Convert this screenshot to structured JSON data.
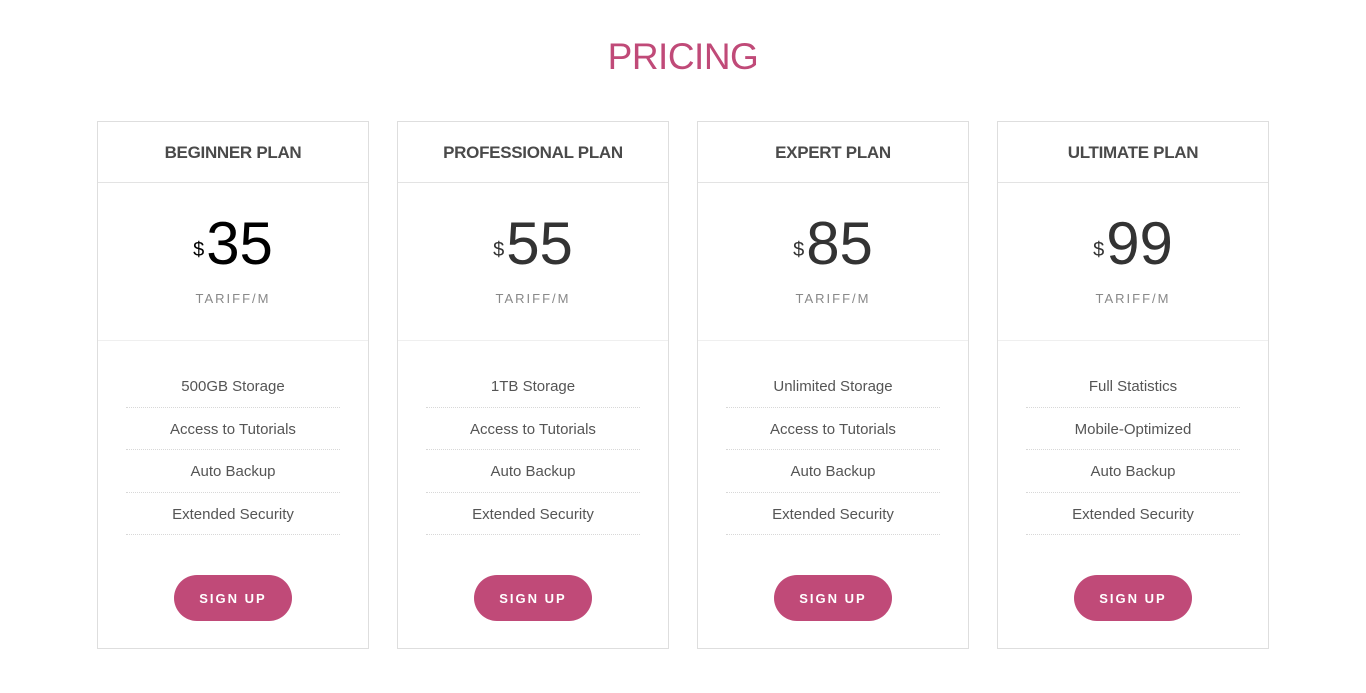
{
  "title": "PRICING",
  "accent_color": "#c04a78",
  "plans": [
    {
      "name": "BEGINNER PLAN",
      "currency": "$",
      "price": "35",
      "period": "TARIFF/M",
      "features": [
        "500GB Storage",
        "Access to Tutorials",
        "Auto Backup",
        "Extended Security"
      ],
      "button": "SIGN UP"
    },
    {
      "name": "PROFESSIONAL PLAN",
      "currency": "$",
      "price": "55",
      "period": "TARIFF/M",
      "features": [
        "1TB Storage",
        "Access to Tutorials",
        "Auto Backup",
        "Extended Security"
      ],
      "button": "SIGN UP"
    },
    {
      "name": "EXPERT PLAN",
      "currency": "$",
      "price": "85",
      "period": "TARIFF/M",
      "features": [
        "Unlimited Storage",
        "Access to Tutorials",
        "Auto Backup",
        "Extended Security"
      ],
      "button": "SIGN UP"
    },
    {
      "name": "ULTIMATE PLAN",
      "currency": "$",
      "price": "99",
      "period": "TARIFF/M",
      "features": [
        "Full Statistics",
        "Mobile-Optimized",
        "Auto Backup",
        "Extended Security"
      ],
      "button": "SIGN UP"
    }
  ]
}
